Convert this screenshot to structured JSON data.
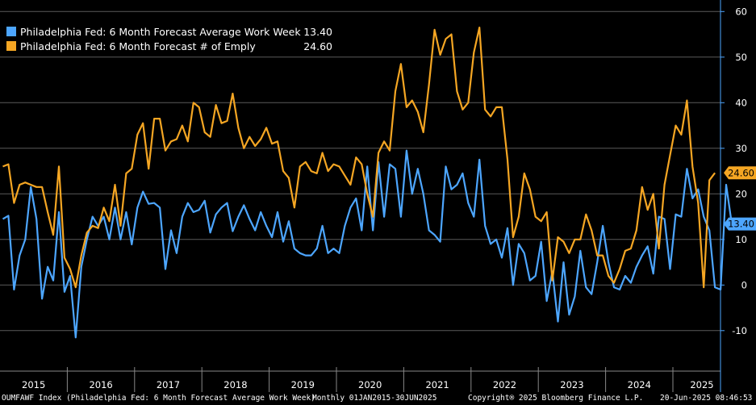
{
  "chart_data": {
    "type": "line",
    "title": "",
    "xlabel": "",
    "ylabel": "",
    "x_tick_labels": [
      "2015",
      "2016",
      "2017",
      "2018",
      "2019",
      "2020",
      "2021",
      "2022",
      "2023",
      "2024",
      "2025"
    ],
    "y_ticks": [
      -10,
      0,
      10,
      20,
      30,
      40,
      50,
      60
    ],
    "ylim": [
      -18,
      62
    ],
    "xlim": [
      "2015-01",
      "2025-06"
    ],
    "grid": true,
    "legend_position": "top-left",
    "series": [
      {
        "name": "Philadelphia Fed: 6 Month Forecast Average Work Week",
        "color": "#4da6ff",
        "last_value": "13.40",
        "values": [
          14.5,
          15.2,
          -1.0,
          6.5,
          10.0,
          21.5,
          14.5,
          -3.0,
          4.0,
          1.0,
          16.0,
          -1.5,
          2.0,
          -11.5,
          4.0,
          10.0,
          15.0,
          13.0,
          15.0,
          10.0,
          17.0,
          10.0,
          16.0,
          8.9,
          17.0,
          20.5,
          17.8,
          18.0,
          17.0,
          3.5,
          12.0,
          7.0,
          15.0,
          18.0,
          16.0,
          16.5,
          18.5,
          11.5,
          15.5,
          17.0,
          18.0,
          11.8,
          15.0,
          17.5,
          14.5,
          12.0,
          16.0,
          13.0,
          10.5,
          16.0,
          9.5,
          14.0,
          8.0,
          7.0,
          6.5,
          6.5,
          8.0,
          13.0,
          7.0,
          8.0,
          7.0,
          13.0,
          17.0,
          19.0,
          12.0,
          26.0,
          12.0,
          27.0,
          15.0,
          26.5,
          25.5,
          15.0,
          29.5,
          20.0,
          25.5,
          20.0,
          12.0,
          11.0,
          9.5,
          26.0,
          21.0,
          22.0,
          24.5,
          18.0,
          15.0,
          27.5,
          13.0,
          9.0,
          10.0,
          6.0,
          12.5,
          0.0,
          9.0,
          7.0,
          1.0,
          2.0,
          9.5,
          -3.5,
          3.0,
          -8.0,
          5.0,
          -6.5,
          -2.5,
          7.5,
          -0.5,
          -2.0,
          5.0,
          13.0,
          5.0,
          -0.5,
          -1.0,
          2.0,
          0.5,
          4.0,
          6.5,
          8.5,
          2.5,
          15.0,
          14.5,
          3.5,
          15.5,
          15.0,
          25.5,
          19.0,
          21.0,
          15.0,
          12.0,
          -0.5,
          -1.0,
          22.0,
          13.4
        ]
      },
      {
        "name": "Philadelphia Fed: 6 Month Forecast # of Emply",
        "color": "#f5a623",
        "last_value": "24.60",
        "values": [
          26.0,
          26.5,
          18.0,
          22.0,
          22.5,
          22.0,
          21.5,
          21.5,
          16.0,
          11.0,
          26.0,
          6.0,
          3.5,
          -0.5,
          6.5,
          11.5,
          13.0,
          12.5,
          17.0,
          14.0,
          22.0,
          13.0,
          24.5,
          25.5,
          33.0,
          35.5,
          25.5,
          36.5,
          36.5,
          29.5,
          31.5,
          32.0,
          35.0,
          31.5,
          40.0,
          39.0,
          33.5,
          32.5,
          39.5,
          35.5,
          36.0,
          42.0,
          34.5,
          30.0,
          32.5,
          30.5,
          32.0,
          34.5,
          31.0,
          31.5,
          25.0,
          23.5,
          17.0,
          26.0,
          27.0,
          25.0,
          24.5,
          29.0,
          25.0,
          26.5,
          26.0,
          24.0,
          22.0,
          28.0,
          26.5,
          20.0,
          15.0,
          29.0,
          31.5,
          29.5,
          42.5,
          48.5,
          39.0,
          40.5,
          38.0,
          33.5,
          44.0,
          56.0,
          50.5,
          54.0,
          55.0,
          42.5,
          38.5,
          40.0,
          51.0,
          56.5,
          38.5,
          37.0,
          39.0,
          39.0,
          27.5,
          10.5,
          15.0,
          24.5,
          21.0,
          15.0,
          14.0,
          16.0,
          1.0,
          10.5,
          9.5,
          7.0,
          10.0,
          10.0,
          15.5,
          12.0,
          6.5,
          6.5,
          2.0,
          0.5,
          3.5,
          7.5,
          8.0,
          12.0,
          21.5,
          16.5,
          20.0,
          8.0,
          22.0,
          28.5,
          35.0,
          33.0,
          40.5,
          26.0,
          18.0,
          -0.5,
          23.0,
          24.6
        ]
      }
    ]
  },
  "legend": {
    "items": [
      {
        "name": "Philadelphia Fed: 6 Month Forecast Average Work Week",
        "value": "13.40",
        "color": "#4da6ff"
      },
      {
        "name": "Philadelphia Fed: 6 Month Forecast # of Emply",
        "value": "24.60",
        "color": "#f5a623"
      }
    ]
  },
  "footer": {
    "index_info": "OUMFAWF Index (Philadelphia Fed: 6 Month Forecast Average Work Week)",
    "period": "Monthly 01JAN2015-30JUN2025",
    "copyright": "Copyright® 2025 Bloomberg Finance L.P.",
    "timestamp": "20-Jun-2025 08:46:53"
  }
}
